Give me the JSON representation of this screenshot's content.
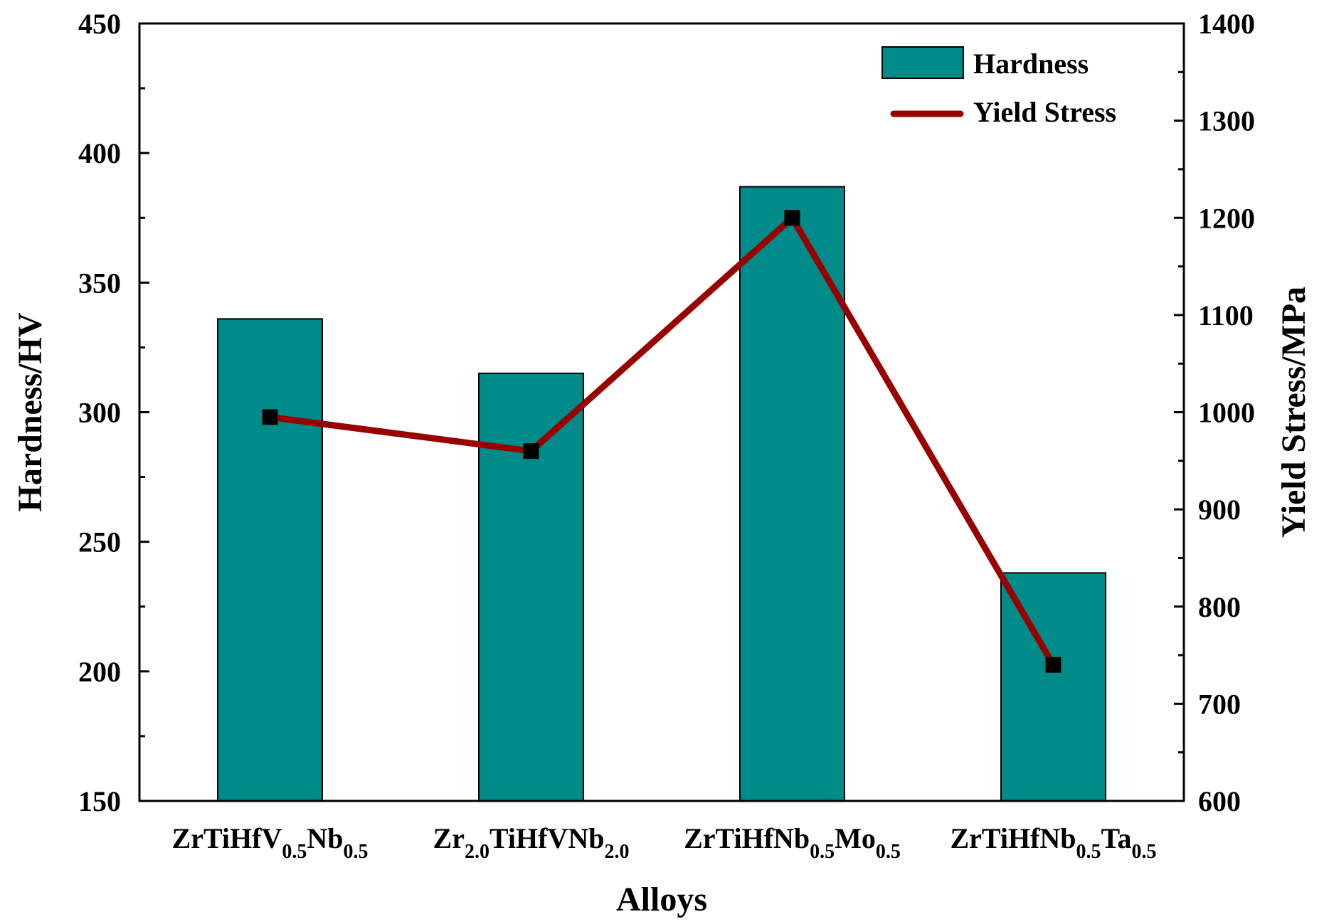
{
  "chart_data": {
    "type": "bar",
    "categories": [
      [
        {
          "t": "ZrTiHfV"
        },
        {
          "t": "0.5",
          "sub": true
        },
        {
          "t": "Nb"
        },
        {
          "t": "0.5",
          "sub": true
        }
      ],
      [
        {
          "t": "Zr"
        },
        {
          "t": "2.0",
          "sub": true
        },
        {
          "t": "TiHfVNb"
        },
        {
          "t": "2.0",
          "sub": true
        }
      ],
      [
        {
          "t": "ZrTiHfNb"
        },
        {
          "t": "0.5",
          "sub": true
        },
        {
          "t": "Mo"
        },
        {
          "t": "0.5",
          "sub": true
        }
      ],
      [
        {
          "t": "ZrTiHfNb"
        },
        {
          "t": "0.5",
          "sub": true
        },
        {
          "t": "Ta"
        },
        {
          "t": "0.5",
          "sub": true
        }
      ]
    ],
    "xlabel": "Alloys",
    "ylabel": "Hardness/HV",
    "y2label": "Yield Stress/MPa",
    "ylim": [
      150,
      450
    ],
    "y2lim": [
      600,
      1400
    ],
    "yticks": [
      150,
      200,
      250,
      300,
      350,
      400,
      450
    ],
    "y2ticks": [
      600,
      700,
      800,
      900,
      1000,
      1100,
      1200,
      1300,
      1400
    ],
    "legend_position": "top-right",
    "series": [
      {
        "name": "Hardness",
        "kind": "bar",
        "axis": "left",
        "color": "#008b8b",
        "values": [
          336,
          315,
          387,
          238
        ]
      },
      {
        "name": "Yield Stress",
        "kind": "line",
        "axis": "right",
        "color": "#990000",
        "marker_color": "#000000",
        "values": [
          995,
          960,
          1200,
          740
        ]
      }
    ]
  }
}
